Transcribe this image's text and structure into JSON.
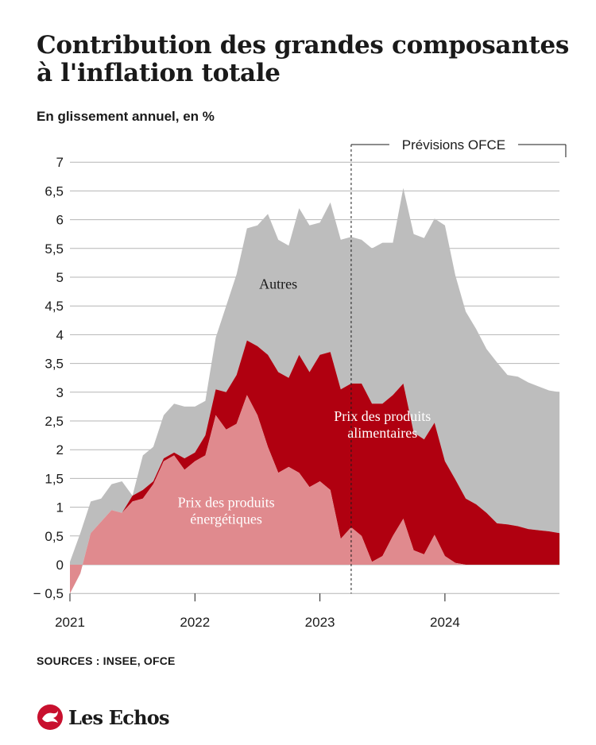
{
  "title": "Contribution des grandes composantes à l'inflation totale",
  "subtitle": "En glissement annuel, en %",
  "source": "SOURCES : INSEE, OFCE",
  "brand": {
    "name": "Les Echos",
    "logo_icon": "les-echos-logo-icon",
    "logo_color": "#c8102e"
  },
  "colors": {
    "autres": "#bdbdbd",
    "alimentaires": "#b00010",
    "energetiques": "#e08a8e",
    "grid": "#b5b5b5"
  },
  "chart_data": {
    "type": "area",
    "stacked": true,
    "ylim": [
      -0.5,
      7
    ],
    "yticks": [
      -0.5,
      0,
      0.5,
      1,
      1.5,
      2,
      2.5,
      3,
      3.5,
      4,
      4.5,
      5,
      5.5,
      6,
      6.5,
      7
    ],
    "ytick_labels": [
      "− 0,5",
      "0",
      "0,5",
      "1",
      "1,5",
      "2",
      "2,5",
      "3",
      "3,5",
      "4",
      "4,5",
      "5",
      "5,5",
      "6",
      "6,5",
      "7"
    ],
    "xticks": [
      2021,
      2022,
      2023,
      2024
    ],
    "x_start": "2021-01",
    "forecast": {
      "label": "Prévisions OFCE",
      "start": "2023-04",
      "end": "2024-12"
    },
    "x": [
      "2021-01",
      "2021-02",
      "2021-03",
      "2021-04",
      "2021-05",
      "2021-06",
      "2021-07",
      "2021-08",
      "2021-09",
      "2021-10",
      "2021-11",
      "2021-12",
      "2022-01",
      "2022-02",
      "2022-03",
      "2022-04",
      "2022-05",
      "2022-06",
      "2022-07",
      "2022-08",
      "2022-09",
      "2022-10",
      "2022-11",
      "2022-12",
      "2023-01",
      "2023-02",
      "2023-03",
      "2023-04",
      "2023-05",
      "2023-06",
      "2023-07",
      "2023-08",
      "2023-09",
      "2023-10",
      "2023-11",
      "2023-12",
      "2024-01",
      "2024-02",
      "2024-03",
      "2024-04",
      "2024-05",
      "2024-06",
      "2024-07",
      "2024-08",
      "2024-09",
      "2024-10",
      "2024-11",
      "2024-12"
    ],
    "series": [
      {
        "name": "Prix des produits énergétiques",
        "label_lines": [
          "Prix des produits",
          "énergétiques"
        ],
        "values": [
          -0.5,
          -0.15,
          0.55,
          0.75,
          0.95,
          0.9,
          1.1,
          1.15,
          1.4,
          1.8,
          1.9,
          1.65,
          1.8,
          1.9,
          2.6,
          2.35,
          2.45,
          2.95,
          2.6,
          2.05,
          1.6,
          1.7,
          1.6,
          1.35,
          1.45,
          1.3,
          0.45,
          0.65,
          0.5,
          0.05,
          0.15,
          0.5,
          0.8,
          0.25,
          0.18,
          0.52,
          0.15,
          0.03,
          0,
          0,
          0,
          0,
          0,
          0,
          0,
          0,
          0,
          0
        ]
      },
      {
        "name": "Prix des produits alimentaires",
        "label_lines": [
          "Prix des produits",
          "alimentaires"
        ],
        "values": [
          0,
          0,
          0,
          0,
          0,
          0,
          0.1,
          0.15,
          0.05,
          0.05,
          0.05,
          0.2,
          0.15,
          0.35,
          0.45,
          0.65,
          0.85,
          0.95,
          1.2,
          1.6,
          1.75,
          1.55,
          2.05,
          2.0,
          2.2,
          2.4,
          2.6,
          2.5,
          2.65,
          2.75,
          2.65,
          2.45,
          2.35,
          2.05,
          2.0,
          1.95,
          1.65,
          1.45,
          1.15,
          1.05,
          0.9,
          0.72,
          0.7,
          0.67,
          0.62,
          0.6,
          0.58,
          0.55
        ]
      },
      {
        "name": "Autres",
        "label_lines": [
          "Autres"
        ],
        "values": [
          0.55,
          0.7,
          0.55,
          0.4,
          0.45,
          0.55,
          0.0,
          0.6,
          0.6,
          0.75,
          0.85,
          0.9,
          0.8,
          0.6,
          0.9,
          1.5,
          1.75,
          1.95,
          2.1,
          2.45,
          2.3,
          2.3,
          2.55,
          2.55,
          2.3,
          2.6,
          2.6,
          2.55,
          2.5,
          2.7,
          2.8,
          2.65,
          3.4,
          3.45,
          3.5,
          3.55,
          4.1,
          3.55,
          3.25,
          3.05,
          2.85,
          2.8,
          2.6,
          2.6,
          2.55,
          2.5,
          2.45,
          2.45
        ]
      }
    ]
  }
}
